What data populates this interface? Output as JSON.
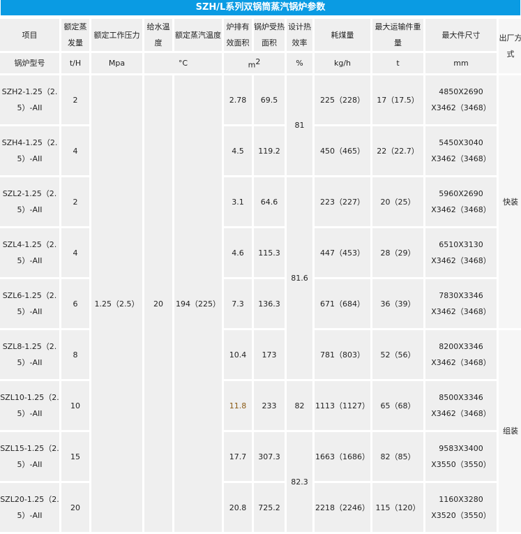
{
  "title": "SZH/L系列双锅筒蒸汽锅炉参数",
  "headers": [
    "项目",
    "额定蒸发量",
    "额定工作压力",
    "给水温度",
    "额定蒸汽温度",
    "炉排有效面积",
    "锅炉受热面积",
    "设计热效率",
    "耗煤量",
    "最大运输件重量",
    "最大件尺寸",
    "出厂方式"
  ],
  "units": {
    "model": "锅炉型号",
    "flow": "t/H",
    "pressure": "Mpa",
    "temp": "°C",
    "area": "m",
    "area_sup": "2",
    "eff": "%",
    "coal": "kg/h",
    "weight": "t",
    "size": "mm"
  },
  "shared": {
    "pressure": "1.25（2.5）",
    "feed_temp": "20",
    "steam_temp": "194（225）"
  },
  "efficiency": [
    "81",
    "81.6",
    "82",
    "82.3"
  ],
  "delivery": [
    "快装",
    "组装"
  ],
  "rows": [
    {
      "model": "SZH2-1.25（2.5）-AII",
      "flow": "2",
      "grate": "2.78",
      "heat": "69.5",
      "coal": "225（228）",
      "weight": "17（17.5）",
      "size1": "4850X2690",
      "size2": "X3462（3468）"
    },
    {
      "model": "SZH4-1.25（2.5）-AII",
      "flow": "4",
      "grate": "4.5",
      "heat": "119.2",
      "coal": "450（465）",
      "weight": "22（22.7）",
      "size1": "5450X3040",
      "size2": "X3462（3468）"
    },
    {
      "model": "SZL2-1.25（2.5）-AII",
      "flow": "2",
      "grate": "3.1",
      "heat": "64.6",
      "coal": "223（227）",
      "weight": "20（25）",
      "size1": "5960X2690",
      "size2": "X3462（3468）"
    },
    {
      "model": "SZL4-1.25（2.5）-AII",
      "flow": "4",
      "grate": "4.6",
      "heat": "115.3",
      "coal": "447（453）",
      "weight": "28（29）",
      "size1": "6510X3130",
      "size2": "X3462（3468）"
    },
    {
      "model": "SZL6-1.25（2.5）-AII",
      "flow": "6",
      "grate": "7.3",
      "heat": "136.3",
      "coal": "671（684）",
      "weight": "36（39）",
      "size1": "7830X3346",
      "size2": "X3462（3468）"
    },
    {
      "model": "SZL8-1.25（2.5）-AII",
      "flow": "8",
      "grate": "10.4",
      "heat": "173",
      "coal": "781（803）",
      "weight": "52（56）",
      "size1": "8200X3346",
      "size2": "X3462（3468）"
    },
    {
      "model": "SZL10-1.25（2.5）-AII",
      "flow": "10",
      "grate": "11.8",
      "heat": "233",
      "coal": "1113（1127）",
      "weight": "65（68）",
      "size1": "8500X3346",
      "size2": "X3462（3468）"
    },
    {
      "model": "SZL15-1.25（2.5）-AII",
      "flow": "15",
      "grate": "17.7",
      "heat": "307.3",
      "coal": "1663（1686）",
      "weight": "82（85）",
      "size1": "9583X3400",
      "size2": "X3550（3550）"
    },
    {
      "model": "SZL20-1.25（2.5）-AII",
      "flow": "20",
      "grate": "20.8",
      "heat": "725.2",
      "coal": "2218（2246）",
      "weight": "115（120）",
      "size1": "1160X3280",
      "size2": "X3520（3550）"
    }
  ],
  "colors": {
    "title_bg": "#0a9be3",
    "cell_bg": "#efefef"
  }
}
